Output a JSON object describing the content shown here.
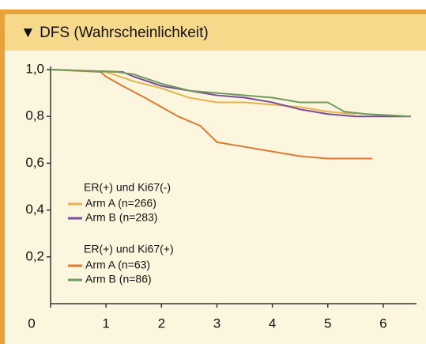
{
  "chart_data": {
    "type": "line",
    "title": "▼ DFS (Wahrscheinlichkeit)",
    "xlim": [
      0,
      6.6
    ],
    "xticks": [
      0,
      1,
      2,
      3,
      4,
      5,
      6
    ],
    "ylim": [
      0,
      1
    ],
    "yticks": [
      {
        "value": 0.2,
        "label": "0,2"
      },
      {
        "value": 0.4,
        "label": "0,4"
      },
      {
        "value": 0.6,
        "label": "0,6"
      },
      {
        "value": 0.8,
        "label": "0,8"
      },
      {
        "value": 1.0,
        "label": "1,0"
      }
    ],
    "series": [
      {
        "group": "ER(+) und Ki67(-)",
        "name": "Arm A (n=266)",
        "color": "#e6b24e",
        "x": [
          0,
          1.0,
          1.5,
          2.0,
          2.5,
          3.0,
          3.5,
          4.0,
          4.5,
          5.0,
          5.5
        ],
        "values": [
          1.0,
          0.99,
          0.95,
          0.92,
          0.88,
          0.86,
          0.86,
          0.85,
          0.84,
          0.82,
          0.81
        ]
      },
      {
        "group": "ER(+) und Ki67(-)",
        "name": "Arm B (n=283)",
        "color": "#7b4c9c",
        "x": [
          0,
          1.3,
          1.5,
          2.0,
          2.5,
          3.0,
          3.5,
          4.0,
          4.5,
          5.0,
          5.5,
          6.5
        ],
        "values": [
          1.0,
          0.99,
          0.97,
          0.93,
          0.91,
          0.89,
          0.88,
          0.86,
          0.83,
          0.81,
          0.8,
          0.8
        ]
      },
      {
        "group": "ER(+) und Ki67(+)",
        "name": "Arm A (n=63)",
        "color": "#e07a30",
        "x": [
          0,
          0.9,
          1.0,
          1.3,
          1.7,
          2.0,
          2.3,
          2.7,
          3.0,
          3.5,
          4.0,
          4.5,
          5.0,
          5.8
        ],
        "values": [
          1.0,
          0.99,
          0.97,
          0.93,
          0.88,
          0.84,
          0.8,
          0.76,
          0.69,
          0.67,
          0.65,
          0.63,
          0.62,
          0.62
        ]
      },
      {
        "group": "ER(+) und Ki67(+)",
        "name": "Arm B (n=86)",
        "color": "#6e9c5c",
        "x": [
          0,
          1.2,
          1.5,
          2.0,
          2.5,
          3.0,
          4.0,
          4.5,
          5.0,
          5.3,
          5.7,
          6.5
        ],
        "values": [
          1.0,
          0.99,
          0.98,
          0.94,
          0.91,
          0.9,
          0.88,
          0.86,
          0.86,
          0.82,
          0.81,
          0.8
        ]
      }
    ]
  }
}
